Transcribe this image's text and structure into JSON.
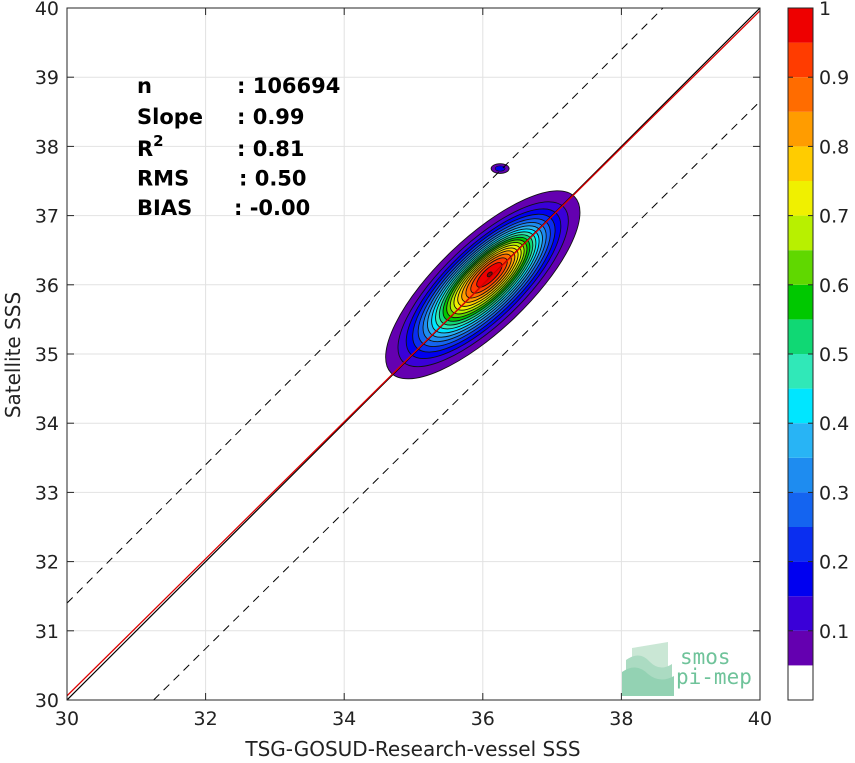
{
  "chart_data": {
    "type": "contour-density",
    "xlabel": "TSG-GOSUD-Research-vessel SSS",
    "ylabel": "Satellite SSS",
    "xlim": [
      30,
      40
    ],
    "ylim": [
      30,
      40
    ],
    "xticks": [
      30,
      32,
      34,
      36,
      38,
      40
    ],
    "yticks": [
      30,
      31,
      32,
      33,
      34,
      35,
      36,
      37,
      38,
      39,
      40
    ],
    "grid": true,
    "stats": [
      {
        "label": "n",
        "value": ": 106694"
      },
      {
        "label": "Slope",
        "value": ": 0.99"
      },
      {
        "label": "R",
        "sup": "2",
        "value": ": 0.81"
      },
      {
        "label": "RMS",
        "value": ": 0.50"
      },
      {
        "label": "BIAS",
        "value": ": -0.00"
      }
    ],
    "lines": {
      "identity": {
        "x": [
          30,
          40
        ],
        "y": [
          30,
          40
        ],
        "color": "#000000"
      },
      "regression": {
        "slope": 0.99,
        "intercept": 0.36,
        "color": "#dd0000"
      },
      "upper_bound": {
        "x": [
          30,
          38.6
        ],
        "y": [
          31.4,
          40
        ],
        "style": "dashed"
      },
      "lower_bound": {
        "x": [
          31.25,
          40
        ],
        "y": [
          30,
          38.65
        ],
        "style": "dashed"
      }
    },
    "density": {
      "center": [
        36.0,
        36.0
      ],
      "direction": [
        0.72,
        0.69
      ],
      "sigma_major": 0.75,
      "sigma_minor": 0.27,
      "peak_offset": [
        0.1,
        0.15
      ],
      "outlier": {
        "x": 36.25,
        "y": 37.68,
        "rx": 0.13,
        "ry": 0.07
      }
    },
    "colorbar": {
      "range": [
        0,
        1
      ],
      "tick_values": [
        0.1,
        0.2,
        0.3,
        0.4,
        0.5,
        0.6,
        0.7,
        0.8,
        0.9,
        1
      ],
      "tick_labels": [
        "0.1",
        "0.2",
        "0.3",
        "0.4",
        "0.5",
        "0.6",
        "0.7",
        "0.8",
        "0.9",
        "1"
      ],
      "levels": [
        0.05,
        0.1,
        0.15,
        0.2,
        0.25,
        0.3,
        0.35,
        0.4,
        0.45,
        0.5,
        0.55,
        0.6,
        0.65,
        0.7,
        0.75,
        0.8,
        0.85,
        0.9,
        0.95,
        1.0
      ],
      "colors": [
        "#ffffff",
        "#6400b0",
        "#3a00d8",
        "#0000f0",
        "#0a2ef0",
        "#1464f0",
        "#1e8cf0",
        "#28b4f5",
        "#00e6ff",
        "#30e8b8",
        "#10d874",
        "#00c800",
        "#60d800",
        "#b8f000",
        "#f0f000",
        "#ffcc00",
        "#ff9c00",
        "#ff6c00",
        "#ff3c00",
        "#ee0000",
        "#8b0000"
      ]
    }
  },
  "logo": {
    "line1": "smos",
    "line2": "pi-mep",
    "color": "#6fc39a"
  }
}
